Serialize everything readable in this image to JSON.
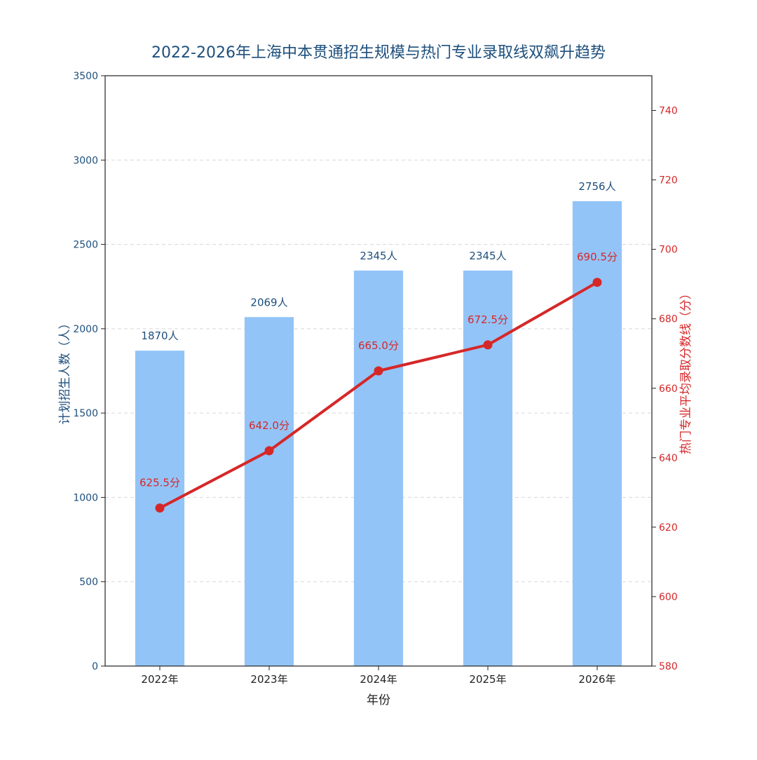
{
  "chart_data": {
    "type": "bar",
    "title": "2022-2026年上海中本贯通招生规模与热门专业录取线双飙升趋势",
    "xlabel": "年份",
    "ylabel_left": "计划招生人数（人）",
    "ylabel_right": "热门专业平均录取分数线（分）",
    "categories": [
      "2022年",
      "2023年",
      "2024年",
      "2025年",
      "2026年"
    ],
    "bars": {
      "values": [
        1870,
        2069,
        2345,
        2345,
        2756
      ],
      "labels": [
        "1870人",
        "2069人",
        "2345人",
        "2345人",
        "2756人"
      ],
      "color": "#93c4f8",
      "label_color": "#1d4f7c"
    },
    "line": {
      "type": "line",
      "values": [
        625.5,
        642.0,
        665.0,
        672.5,
        690.5
      ],
      "labels": [
        "625.5分",
        "642.0分",
        "665.0分",
        "672.5分",
        "690.5分"
      ],
      "color": "#d62728"
    },
    "left_axis": {
      "ylim": [
        0,
        3500
      ],
      "ticks": [
        0,
        500,
        1000,
        1500,
        2000,
        2500,
        3000,
        3500
      ],
      "color": "#1d4f7c"
    },
    "right_axis": {
      "ylim": [
        580,
        750
      ],
      "ticks": [
        580,
        600,
        620,
        640,
        660,
        680,
        700,
        720,
        740
      ],
      "color": "#d62728"
    },
    "grid": "horizontal-dashed",
    "title_color": "#1d4f7c"
  }
}
